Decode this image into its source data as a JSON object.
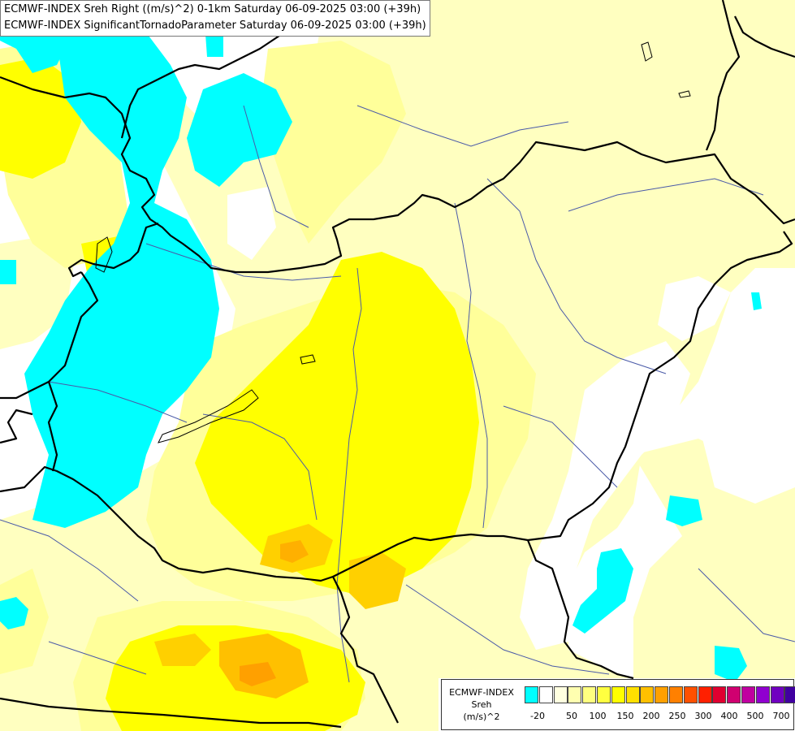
{
  "titles": {
    "line1": "ECMWF-INDEX Sreh Right ((m/s)^2) 0-1km Saturday 06-09-2025 03:00 (+39h)",
    "line2": "ECMWF-INDEX SignificantTornadoParameter Saturday 06-09-2025 03:00 (+39h)"
  },
  "legend": {
    "line1": "ECMWF-INDEX",
    "line2": "Sreh",
    "line3": "(m/s)^2",
    "colors": [
      "#00ffff",
      "#ffffff",
      "#ffffe0",
      "#ffffb0",
      "#ffff80",
      "#ffff40",
      "#ffff00",
      "#ffe000",
      "#ffc000",
      "#ffa000",
      "#ff8000",
      "#ff5000",
      "#ff2000",
      "#e00030",
      "#d00070",
      "#c000a0",
      "#9000d0",
      "#7000c0",
      "#4000a0",
      "#000080"
    ],
    "ticks": [
      "-20",
      "50",
      "100",
      "150",
      "200",
      "250",
      "300",
      "400",
      "500",
      "700"
    ]
  },
  "colors": {
    "cyan": "#00ffff",
    "pale_yellow": "#ffffc0",
    "light_yellow": "#ffff80",
    "yellow": "#ffff00",
    "deep_yellow": "#ffe000",
    "orange": "#ffc000",
    "border": "#000000",
    "river": "#4a5aa8"
  }
}
